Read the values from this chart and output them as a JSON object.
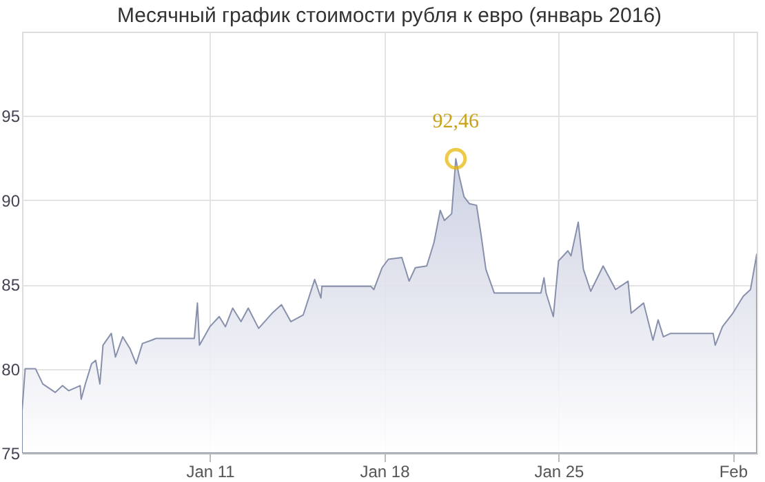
{
  "chart_data": {
    "type": "area",
    "title": "Месячный график стоимости рубля к евро (январь 2016)",
    "x": [
      "2016-01-03T11:00",
      "2016-01-03T14:00",
      "2016-01-04T00:00",
      "2016-01-04T07:00",
      "2016-01-04T19:00",
      "2016-01-05T02:00",
      "2016-01-05T08:00",
      "2016-01-05T19:00",
      "2016-01-05T20:00",
      "2016-01-06T00:00",
      "2016-01-06T06:00",
      "2016-01-06T10:00",
      "2016-01-06T14:00",
      "2016-01-06T17:00",
      "2016-01-07T01:00",
      "2016-01-07T05:00",
      "2016-01-07T12:00",
      "2016-01-07T19:00",
      "2016-01-08T01:00",
      "2016-01-08T07:00",
      "2016-01-08T16:00",
      "2016-01-08T20:00",
      "2016-01-10T09:00",
      "2016-01-10T12:00",
      "2016-01-10T14:00",
      "2016-01-11T00:00",
      "2016-01-11T09:00",
      "2016-01-11T15:00",
      "2016-01-11T22:00",
      "2016-01-12T06:00",
      "2016-01-12T13:00",
      "2016-01-12T23:00",
      "2016-01-13T12:00",
      "2016-01-13T21:00",
      "2016-01-14T06:00",
      "2016-01-14T18:00",
      "2016-01-15T05:00",
      "2016-01-15T11:00",
      "2016-01-15T12:00",
      "2016-01-17T11:00",
      "2016-01-17T14:00",
      "2016-01-17T22:00",
      "2016-01-18T04:00",
      "2016-01-18T17:00",
      "2016-01-19T00:00",
      "2016-01-19T06:00",
      "2016-01-19T17:00",
      "2016-01-20T00:00",
      "2016-01-20T06:00",
      "2016-01-20T10:00",
      "2016-01-20T17:00",
      "2016-01-20T21:00",
      "2016-01-21T00:00",
      "2016-01-21T05:00",
      "2016-01-21T10:00",
      "2016-01-21T17:00",
      "2016-01-21T21:00",
      "2016-01-22T02:00",
      "2016-01-22T10:00",
      "2016-01-24T07:00",
      "2016-01-24T10:00",
      "2016-01-24T12:00",
      "2016-01-24T19:00",
      "2016-01-25T00:00",
      "2016-01-25T09:00",
      "2016-01-25T12:00",
      "2016-01-25T19:00",
      "2016-01-26T00:00",
      "2016-01-26T07:00",
      "2016-01-26T19:00",
      "2016-01-27T07:00",
      "2016-01-27T19:00",
      "2016-01-27T22:00",
      "2016-01-28T10:00",
      "2016-01-28T19:00",
      "2016-01-29T00:00",
      "2016-01-29T05:00",
      "2016-01-29T12:00",
      "2016-01-31T05:00",
      "2016-01-31T07:00",
      "2016-01-31T14:00",
      "2016-02-01T00:00",
      "2016-02-01T10:00",
      "2016-02-01T17:00",
      "2016-02-01T23:00"
    ],
    "series": [
      {
        "color": "#7b84a3",
        "values": [
          77.5,
          80.0,
          80.0,
          79.1,
          78.6,
          79.0,
          78.7,
          79.0,
          78.2,
          79.1,
          80.3,
          80.5,
          79.1,
          81.4,
          82.1,
          80.7,
          81.9,
          81.2,
          80.3,
          81.5,
          81.7,
          81.8,
          81.8,
          83.9,
          81.4,
          82.5,
          83.1,
          82.5,
          83.6,
          82.8,
          83.6,
          82.4,
          83.3,
          83.8,
          82.8,
          83.2,
          85.3,
          84.2,
          84.9,
          84.9,
          84.7,
          86.0,
          86.5,
          86.6,
          85.2,
          86.0,
          86.1,
          87.5,
          89.4,
          88.8,
          89.2,
          92.46,
          91.5,
          90.2,
          89.8,
          89.7,
          88.1,
          85.9,
          84.5,
          84.5,
          85.4,
          84.5,
          83.1,
          86.4,
          87.0,
          86.7,
          88.7,
          85.9,
          84.6,
          86.1,
          84.7,
          85.2,
          83.3,
          83.9,
          81.7,
          82.9,
          81.9,
          82.1,
          82.1,
          81.4,
          82.5,
          83.3,
          84.3,
          84.7,
          86.8
        ]
      }
    ],
    "xlim": [
      "2016-01-03T11:00",
      "2016-02-01T23:00"
    ],
    "xticks": [
      {
        "value": "2016-01-11",
        "label": "Jan 11"
      },
      {
        "value": "2016-01-18",
        "label": "Jan 18"
      },
      {
        "value": "2016-01-25",
        "label": "Jan 25"
      },
      {
        "value": "2016-02-01",
        "label": "Feb"
      }
    ],
    "ylim": [
      75,
      100
    ],
    "yticks": [
      75,
      80,
      85,
      90,
      95
    ],
    "grid": true,
    "annotations": [
      {
        "text": "92,46",
        "x": "2016-01-20T21:00",
        "y": 92.46
      }
    ]
  }
}
